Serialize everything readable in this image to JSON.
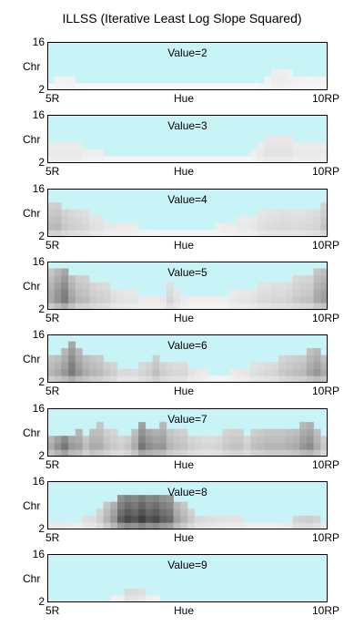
{
  "chart_data": {
    "type": "heatmap",
    "title": "ILLSS (Iterative Least Log Slope Squared)",
    "panel_count": 8,
    "xlabel": "Hue",
    "ylabel": "Chr",
    "x_tick_labels": [
      "5R",
      "10RP"
    ],
    "y_tick_labels": [
      "16",
      "2"
    ],
    "ylim": [
      2,
      16
    ],
    "background_color": "#c8f4f8",
    "cell_color_scale": "white-to-black grayscale",
    "hue_columns": 40,
    "chroma_step": 2,
    "panels": [
      {
        "label": "Value=2",
        "value": 2,
        "chroma_extent": [
          3,
          6,
          6,
          5,
          4,
          4,
          3,
          3,
          3,
          3,
          3,
          3,
          3,
          3,
          3,
          3,
          3,
          3,
          3,
          3,
          3,
          3,
          3,
          3,
          3,
          3,
          3,
          3,
          3,
          3,
          4,
          5,
          8,
          8,
          7,
          6,
          6,
          5,
          6,
          6
        ],
        "shade": [
          0.05,
          0.05,
          0.05,
          0.06,
          0.04,
          0.03,
          0.03,
          0.03,
          0.03,
          0.03,
          0.03,
          0.03,
          0.03,
          0.03,
          0.03,
          0.03,
          0.03,
          0.03,
          0.03,
          0.03,
          0.03,
          0.03,
          0.03,
          0.03,
          0.03,
          0.03,
          0.03,
          0.03,
          0.03,
          0.03,
          0.05,
          0.06,
          0.08,
          0.08,
          0.07,
          0.06,
          0.05,
          0.05,
          0.05,
          0.05
        ]
      },
      {
        "label": "Value=3",
        "value": 3,
        "chroma_extent": [
          8,
          8,
          8,
          8,
          8,
          6,
          6,
          6,
          4,
          4,
          4,
          4,
          4,
          4,
          4,
          4,
          4,
          4,
          4,
          4,
          4,
          4,
          4,
          4,
          4,
          4,
          4,
          4,
          4,
          6,
          8,
          10,
          10,
          10,
          10,
          8,
          8,
          8,
          8,
          8
        ],
        "shade": [
          0.1,
          0.1,
          0.1,
          0.1,
          0.1,
          0.08,
          0.08,
          0.08,
          0.06,
          0.06,
          0.05,
          0.05,
          0.05,
          0.05,
          0.05,
          0.06,
          0.06,
          0.05,
          0.05,
          0.05,
          0.05,
          0.05,
          0.05,
          0.05,
          0.05,
          0.05,
          0.05,
          0.05,
          0.06,
          0.08,
          0.1,
          0.12,
          0.12,
          0.12,
          0.12,
          0.1,
          0.1,
          0.1,
          0.1,
          0.1
        ]
      },
      {
        "label": "Value=4",
        "value": 4,
        "chroma_extent": [
          12,
          12,
          10,
          10,
          10,
          10,
          8,
          8,
          6,
          6,
          6,
          6,
          6,
          4,
          4,
          4,
          4,
          4,
          4,
          4,
          4,
          4,
          4,
          4,
          6,
          6,
          6,
          8,
          8,
          8,
          10,
          10,
          10,
          10,
          10,
          10,
          10,
          10,
          10,
          12
        ],
        "shade": [
          0.28,
          0.3,
          0.26,
          0.22,
          0.2,
          0.18,
          0.15,
          0.14,
          0.12,
          0.11,
          0.1,
          0.1,
          0.09,
          0.08,
          0.08,
          0.08,
          0.07,
          0.07,
          0.07,
          0.07,
          0.07,
          0.07,
          0.07,
          0.07,
          0.08,
          0.09,
          0.09,
          0.1,
          0.1,
          0.11,
          0.14,
          0.15,
          0.16,
          0.17,
          0.16,
          0.15,
          0.16,
          0.18,
          0.2,
          0.25
        ]
      },
      {
        "label": "Value=5",
        "value": 5,
        "chroma_extent": [
          14,
          14,
          14,
          12,
          12,
          12,
          10,
          10,
          10,
          8,
          8,
          8,
          8,
          6,
          6,
          6,
          6,
          10,
          8,
          6,
          6,
          6,
          6,
          6,
          6,
          6,
          8,
          8,
          8,
          8,
          10,
          10,
          10,
          10,
          10,
          12,
          12,
          12,
          14,
          14
        ],
        "shade": [
          0.35,
          0.45,
          0.55,
          0.4,
          0.3,
          0.28,
          0.25,
          0.22,
          0.2,
          0.16,
          0.14,
          0.12,
          0.12,
          0.1,
          0.1,
          0.1,
          0.12,
          0.18,
          0.14,
          0.1,
          0.08,
          0.08,
          0.08,
          0.08,
          0.08,
          0.08,
          0.1,
          0.12,
          0.12,
          0.14,
          0.16,
          0.16,
          0.18,
          0.18,
          0.2,
          0.22,
          0.24,
          0.26,
          0.35,
          0.4
        ]
      },
      {
        "label": "Value=6",
        "value": 6,
        "chroma_extent": [
          10,
          10,
          12,
          14,
          12,
          10,
          10,
          10,
          8,
          8,
          6,
          6,
          6,
          8,
          8,
          10,
          8,
          8,
          8,
          8,
          6,
          6,
          6,
          4,
          4,
          4,
          6,
          6,
          6,
          8,
          8,
          8,
          8,
          10,
          10,
          10,
          10,
          12,
          12,
          10
        ],
        "shade": [
          0.35,
          0.4,
          0.45,
          0.55,
          0.45,
          0.4,
          0.35,
          0.32,
          0.3,
          0.25,
          0.2,
          0.22,
          0.2,
          0.22,
          0.25,
          0.3,
          0.25,
          0.22,
          0.2,
          0.2,
          0.15,
          0.12,
          0.1,
          0.08,
          0.08,
          0.08,
          0.1,
          0.12,
          0.14,
          0.16,
          0.18,
          0.2,
          0.22,
          0.25,
          0.28,
          0.3,
          0.32,
          0.38,
          0.45,
          0.4
        ]
      },
      {
        "label": "Value=7",
        "value": 7,
        "chroma_extent": [
          8,
          8,
          8,
          8,
          10,
          8,
          10,
          12,
          10,
          10,
          8,
          8,
          10,
          12,
          10,
          10,
          12,
          10,
          10,
          10,
          8,
          8,
          8,
          8,
          8,
          10,
          10,
          10,
          8,
          10,
          10,
          10,
          10,
          10,
          10,
          10,
          12,
          12,
          10,
          8
        ],
        "shade": [
          0.45,
          0.6,
          0.75,
          0.55,
          0.45,
          0.35,
          0.4,
          0.35,
          0.3,
          0.25,
          0.25,
          0.3,
          0.4,
          0.6,
          0.55,
          0.5,
          0.45,
          0.35,
          0.3,
          0.28,
          0.25,
          0.22,
          0.2,
          0.2,
          0.22,
          0.25,
          0.28,
          0.28,
          0.25,
          0.3,
          0.32,
          0.35,
          0.35,
          0.35,
          0.38,
          0.4,
          0.45,
          0.5,
          0.4,
          0.3
        ]
      },
      {
        "label": "Value=8",
        "value": 8,
        "chroma_extent": [
          4,
          4,
          4,
          4,
          4,
          6,
          6,
          8,
          10,
          10,
          12,
          12,
          12,
          12,
          12,
          12,
          12,
          12,
          10,
          10,
          8,
          6,
          6,
          6,
          6,
          6,
          6,
          6,
          4,
          4,
          4,
          4,
          4,
          4,
          4,
          6,
          6,
          6,
          6,
          4
        ],
        "shade": [
          0.18,
          0.2,
          0.18,
          0.16,
          0.16,
          0.18,
          0.2,
          0.25,
          0.35,
          0.5,
          0.7,
          0.8,
          0.75,
          0.85,
          0.75,
          0.8,
          0.7,
          0.65,
          0.45,
          0.35,
          0.28,
          0.22,
          0.2,
          0.18,
          0.16,
          0.16,
          0.15,
          0.15,
          0.14,
          0.14,
          0.14,
          0.14,
          0.14,
          0.15,
          0.18,
          0.25,
          0.28,
          0.3,
          0.25,
          0.2
        ]
      },
      {
        "label": "Value=9",
        "value": 9,
        "chroma_extent": [
          2,
          2,
          2,
          2,
          2,
          2,
          2,
          2,
          2,
          4,
          4,
          6,
          6,
          6,
          4,
          4,
          2,
          2,
          2,
          2,
          2,
          2,
          2,
          2,
          2,
          2,
          2,
          2,
          2,
          2,
          2,
          2,
          2,
          2,
          2,
          2,
          2,
          2,
          2,
          2
        ],
        "shade": [
          0.04,
          0.04,
          0.04,
          0.04,
          0.04,
          0.04,
          0.05,
          0.05,
          0.06,
          0.1,
          0.14,
          0.22,
          0.2,
          0.18,
          0.12,
          0.1,
          0.06,
          0.05,
          0.05,
          0.05,
          0.05,
          0.04,
          0.04,
          0.04,
          0.04,
          0.04,
          0.04,
          0.04,
          0.04,
          0.04,
          0.04,
          0.04,
          0.04,
          0.04,
          0.04,
          0.04,
          0.04,
          0.04,
          0.04,
          0.04
        ]
      }
    ]
  }
}
